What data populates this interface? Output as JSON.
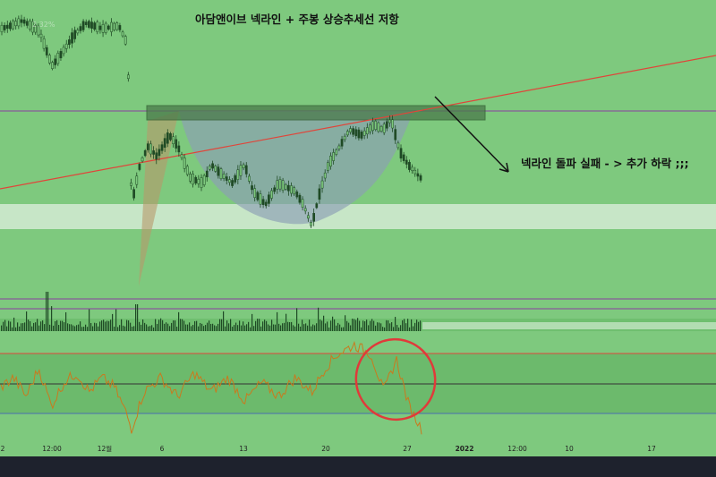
{
  "header": {
    "title": "아담앤이브 넥라인 + 주봉 상승추세선 저항",
    "ticker_pct": "2.32%"
  },
  "annotation": {
    "text": "넥라인 돌파 실패 - > 추가 하락 ;;;"
  },
  "x_axis": {
    "ticks": [
      "2",
      "12:00",
      "12월",
      "6",
      "13",
      "20",
      "27",
      "2022",
      "12:00",
      "10",
      "17"
    ]
  },
  "colors": {
    "background": "#7ec97e",
    "volume_zone": "#6fbf6f",
    "rsi_zone": "#6cba6c",
    "candle": "#1f4a25",
    "trendline": "#e0453a",
    "purple_line": "#8a3fa0",
    "neckline_box": "#4a7a4a",
    "cup": "#8c9eb6",
    "rsi_line": "#c97a1e",
    "circle": "#e03a3a",
    "frame": "#1e222d"
  },
  "chart_data": {
    "type": "candlestick",
    "title": "아담앤이브 넥라인 + 주봉 상승추세선 저항",
    "price_close_path": [
      [
        0,
        0.96
      ],
      [
        0.02,
        0.97
      ],
      [
        0.05,
        0.99
      ],
      [
        0.09,
        0.95
      ],
      [
        0.12,
        0.82
      ],
      [
        0.14,
        0.86
      ],
      [
        0.17,
        0.93
      ],
      [
        0.2,
        0.98
      ],
      [
        0.24,
        0.96
      ],
      [
        0.28,
        0.97
      ],
      [
        0.3,
        0.9
      ],
      [
        0.31,
        0.3
      ],
      [
        0.33,
        0.45
      ],
      [
        0.35,
        0.52
      ],
      [
        0.37,
        0.48
      ],
      [
        0.4,
        0.56
      ],
      [
        0.42,
        0.52
      ],
      [
        0.45,
        0.4
      ],
      [
        0.48,
        0.38
      ],
      [
        0.5,
        0.45
      ],
      [
        0.52,
        0.42
      ],
      [
        0.55,
        0.38
      ],
      [
        0.58,
        0.45
      ],
      [
        0.6,
        0.35
      ],
      [
        0.63,
        0.3
      ],
      [
        0.66,
        0.38
      ],
      [
        0.7,
        0.35
      ],
      [
        0.72,
        0.3
      ],
      [
        0.74,
        0.22
      ],
      [
        0.76,
        0.35
      ],
      [
        0.78,
        0.45
      ],
      [
        0.8,
        0.5
      ],
      [
        0.83,
        0.58
      ],
      [
        0.86,
        0.56
      ],
      [
        0.89,
        0.6
      ],
      [
        0.91,
        0.58
      ],
      [
        0.93,
        0.62
      ],
      [
        0.95,
        0.5
      ],
      [
        0.97,
        0.45
      ],
      [
        1.0,
        0.4
      ]
    ],
    "rsi_path": [
      [
        0,
        0.5
      ],
      [
        0.03,
        0.6
      ],
      [
        0.06,
        0.4
      ],
      [
        0.09,
        0.7
      ],
      [
        0.12,
        0.3
      ],
      [
        0.15,
        0.55
      ],
      [
        0.18,
        0.65
      ],
      [
        0.21,
        0.45
      ],
      [
        0.24,
        0.6
      ],
      [
        0.27,
        0.5
      ],
      [
        0.3,
        0.2
      ],
      [
        0.31,
        0.05
      ],
      [
        0.34,
        0.45
      ],
      [
        0.38,
        0.6
      ],
      [
        0.42,
        0.4
      ],
      [
        0.46,
        0.65
      ],
      [
        0.5,
        0.45
      ],
      [
        0.54,
        0.6
      ],
      [
        0.58,
        0.35
      ],
      [
        0.62,
        0.55
      ],
      [
        0.66,
        0.4
      ],
      [
        0.7,
        0.6
      ],
      [
        0.74,
        0.45
      ],
      [
        0.77,
        0.7
      ],
      [
        0.8,
        0.85
      ],
      [
        0.84,
        0.95
      ],
      [
        0.88,
        0.85
      ],
      [
        0.91,
        0.45
      ],
      [
        0.94,
        0.8
      ],
      [
        0.97,
        0.3
      ],
      [
        1.0,
        0.05
      ]
    ]
  }
}
